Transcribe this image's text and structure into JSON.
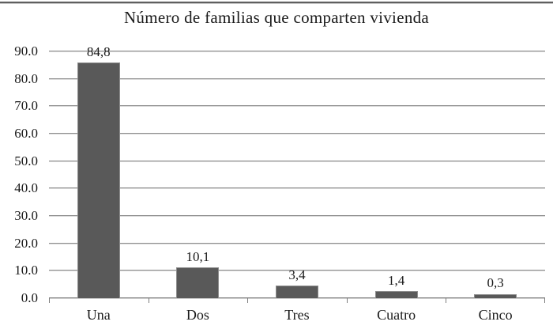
{
  "page": {
    "background": "#ffffff",
    "top_border_dark": "#5f5f5f",
    "top_border_light": "#c6c6c6"
  },
  "chart_data": {
    "type": "bar",
    "title": "Número de familias que comparten vivienda",
    "categories": [
      "Una",
      "Dos",
      "Tres",
      "Cuatro",
      "Cinco"
    ],
    "values": [
      84.8,
      10.1,
      3.4,
      1.4,
      0.3
    ],
    "value_labels": [
      "84,8",
      "10,1",
      "3,4",
      "1,4",
      "0,3"
    ],
    "xlabel": "",
    "ylabel": "",
    "ylim": [
      0,
      90
    ],
    "yticks": [
      90,
      80,
      70,
      60,
      50,
      40,
      30,
      20,
      10,
      0
    ],
    "ytick_labels": [
      "90.0",
      "80.0",
      "70.0",
      "60.0",
      "50.0",
      "40.0",
      "30.0",
      "20.0",
      "10.0",
      "0.0"
    ],
    "grid": "horizontal",
    "legend": "none",
    "bar_color": "#595959",
    "bar_border_color": "#8c8c8c",
    "gridline_color": "#8f8f8f",
    "axis_color": "#7f7f7f",
    "text_color": "#1a1a1a"
  }
}
